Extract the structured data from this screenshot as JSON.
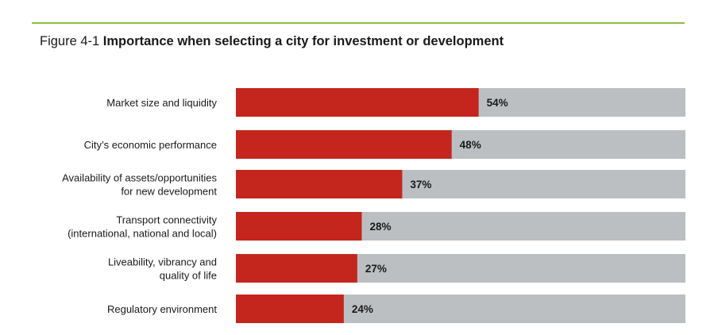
{
  "header": {
    "figure_number": "Figure 4-1",
    "figure_title": "Importance when selecting a city for investment or development"
  },
  "colors": {
    "bar": "#c4261d",
    "track": "#bcbfc1",
    "rule": "#8cbf3f"
  },
  "chart_data": {
    "type": "bar",
    "orientation": "horizontal",
    "title": "Importance when selecting a city for investment or development",
    "categories": [
      [
        "Market size and liquidity"
      ],
      [
        "City’s economic performance"
      ],
      [
        "Availability of assets/opportunities",
        "for new development"
      ],
      [
        "Transport connectivity",
        "(international, national and local)"
      ],
      [
        "Liveability, vibrancy and",
        "quality of life"
      ],
      [
        "Regulatory environment"
      ]
    ],
    "values": [
      54,
      48,
      37,
      28,
      27,
      24
    ],
    "value_labels": [
      "54%",
      "48%",
      "37%",
      "28%",
      "27%",
      "24%"
    ],
    "xlim": [
      0,
      100
    ],
    "unit": "%"
  }
}
